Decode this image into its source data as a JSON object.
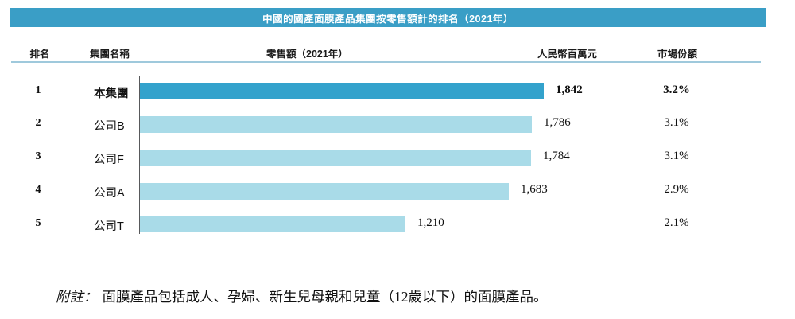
{
  "title": "中國的國產面膜產品集團按零售額計的排名（2021年）",
  "columns": {
    "rank": "排名",
    "group": "集團名稱",
    "retail": "零售額（2021年）",
    "unit": "人民幣百萬元",
    "share": "市場份額"
  },
  "footnote": {
    "label": "附註：",
    "text": "面膜產品包括成人、孕婦、新生兒母親和兒童（12歲以下）的面膜產品。"
  },
  "colors": {
    "title_bar": "#3A9EC6",
    "bar_highlight": "#33A2CC",
    "bar_normal": "#A9DBE8",
    "rule_line": "#9FC9DC",
    "axis_line": "#58595B"
  },
  "chart_data": {
    "type": "bar",
    "orientation": "horizontal",
    "title": "中國的國產面膜產品集團按零售額計的排名（2021年）",
    "unit_label": "人民幣百萬元",
    "xlim": [
      0,
      2000
    ],
    "categories": [
      "本集團",
      "公司B",
      "公司F",
      "公司A",
      "公司T"
    ],
    "values": [
      1842,
      1786,
      1784,
      1683,
      1210
    ],
    "rows": [
      {
        "rank": "1",
        "group": "本集團",
        "value": 1842,
        "value_label": "1,842",
        "share": "3.2%",
        "highlight": true
      },
      {
        "rank": "2",
        "group": "公司B",
        "value": 1786,
        "value_label": "1,786",
        "share": "3.1%",
        "highlight": false
      },
      {
        "rank": "3",
        "group": "公司F",
        "value": 1784,
        "value_label": "1,784",
        "share": "3.1%",
        "highlight": false
      },
      {
        "rank": "4",
        "group": "公司A",
        "value": 1683,
        "value_label": "1,683",
        "share": "2.9%",
        "highlight": false
      },
      {
        "rank": "5",
        "group": "公司T",
        "value": 1210,
        "value_label": "1,210",
        "share": "2.1%",
        "highlight": false
      }
    ]
  }
}
